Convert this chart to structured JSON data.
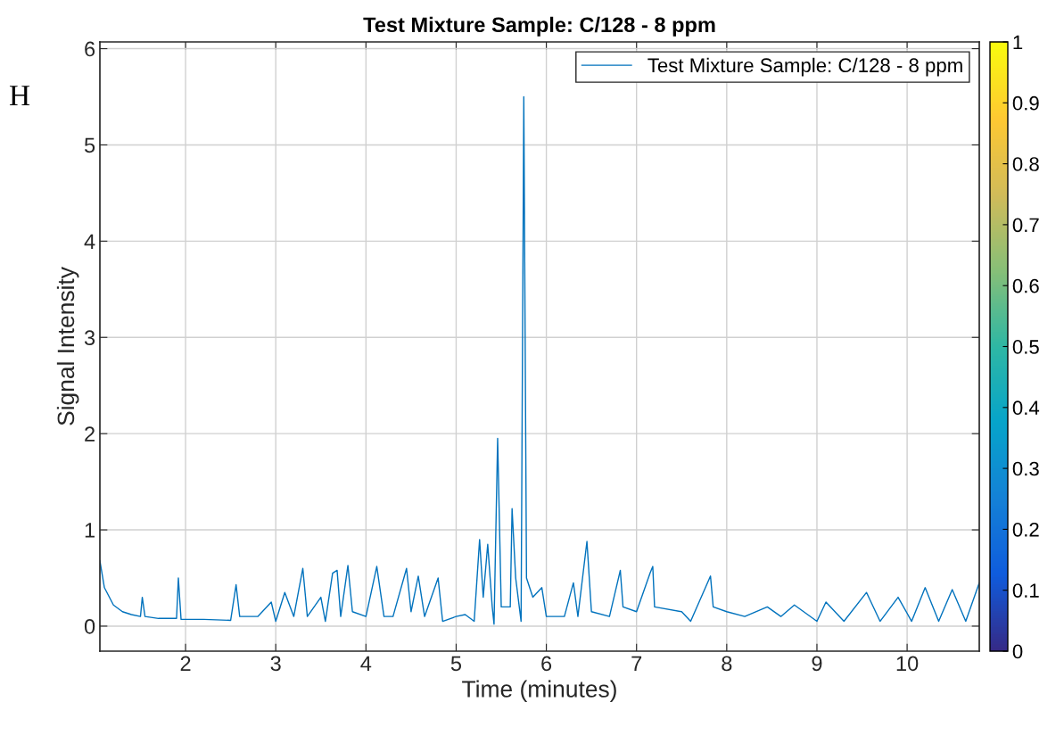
{
  "chart_data": {
    "type": "line",
    "title": "Test Mixture Sample: C/128 - 8 ppm",
    "xlabel": "Time (minutes)",
    "ylabel": "Signal Intensity",
    "annotations": [
      "H"
    ],
    "xlim": [
      1.05,
      10.8
    ],
    "xticks": [
      2,
      3,
      4,
      5,
      6,
      7,
      8,
      9,
      10
    ],
    "ylim": [
      -0.26,
      6.07
    ],
    "yticks": [
      0,
      1,
      2,
      3,
      4,
      5,
      6
    ],
    "clim": [
      0,
      1
    ],
    "cticks": [
      0,
      0.1,
      0.2,
      0.3,
      0.4,
      0.5,
      0.6,
      0.7,
      0.8,
      0.9,
      1
    ],
    "grid": true,
    "legend": "top right",
    "marker": "none",
    "line_style": "solid",
    "series": [
      {
        "name": "Test Mixture Sample: C/128 - 8 ppm",
        "color": "#0072bd",
        "x": [
          1.05,
          1.1,
          1.2,
          1.3,
          1.4,
          1.5,
          1.52,
          1.55,
          1.7,
          1.9,
          1.92,
          1.95,
          2.2,
          2.5,
          2.56,
          2.6,
          2.8,
          2.95,
          3.0,
          3.1,
          3.2,
          3.3,
          3.35,
          3.5,
          3.55,
          3.63,
          3.68,
          3.72,
          3.8,
          3.85,
          4.0,
          4.12,
          4.2,
          4.3,
          4.45,
          4.5,
          4.58,
          4.65,
          4.8,
          4.85,
          5.0,
          5.1,
          5.2,
          5.26,
          5.3,
          5.35,
          5.4,
          5.42,
          5.46,
          5.5,
          5.6,
          5.62,
          5.66,
          5.72,
          5.75,
          5.78,
          5.85,
          5.95,
          6.0,
          6.2,
          6.3,
          6.35,
          6.45,
          6.5,
          6.7,
          6.82,
          6.85,
          7.0,
          7.15,
          7.18,
          7.2,
          7.5,
          7.6,
          7.82,
          7.85,
          8.0,
          8.2,
          8.45,
          8.6,
          8.75,
          9.0,
          9.1,
          9.3,
          9.55,
          9.7,
          9.9,
          10.05,
          10.2,
          10.35,
          10.5,
          10.65,
          10.8
        ],
        "values": [
          0.68,
          0.4,
          0.22,
          0.15,
          0.12,
          0.1,
          0.3,
          0.1,
          0.08,
          0.08,
          0.5,
          0.07,
          0.07,
          0.06,
          0.43,
          0.1,
          0.1,
          0.25,
          0.05,
          0.35,
          0.1,
          0.6,
          0.1,
          0.3,
          0.05,
          0.55,
          0.58,
          0.1,
          0.63,
          0.15,
          0.1,
          0.62,
          0.1,
          0.1,
          0.6,
          0.15,
          0.52,
          0.1,
          0.5,
          0.05,
          0.1,
          0.12,
          0.05,
          0.9,
          0.3,
          0.85,
          0.2,
          0.02,
          1.95,
          0.2,
          0.2,
          1.22,
          0.5,
          0.05,
          5.5,
          0.5,
          0.3,
          0.4,
          0.1,
          0.1,
          0.45,
          0.1,
          0.88,
          0.15,
          0.1,
          0.58,
          0.2,
          0.15,
          0.55,
          0.62,
          0.2,
          0.15,
          0.05,
          0.52,
          0.2,
          0.15,
          0.1,
          0.2,
          0.1,
          0.22,
          0.05,
          0.25,
          0.05,
          0.35,
          0.05,
          0.3,
          0.05,
          0.4,
          0.05,
          0.38,
          0.05,
          0.45
        ]
      }
    ]
  }
}
